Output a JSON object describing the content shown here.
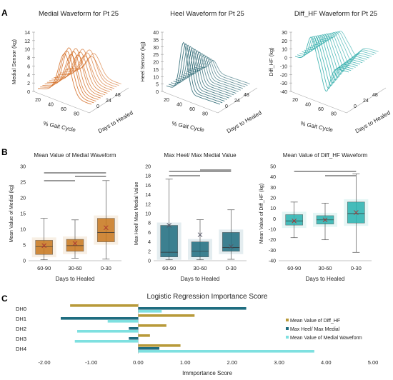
{
  "panel_letters": [
    "A",
    "B",
    "C"
  ],
  "section_a": {
    "plots": [
      {
        "title": "Medial Waveform for Pt 25",
        "zlabel": "Medial Sensor (kg)",
        "ticks": [
          "0",
          "2",
          "4",
          "6",
          "8",
          "10",
          "12",
          "14"
        ],
        "xlabel": "% Gait Cycle",
        "ylabel": "Days to Healed",
        "xticks": [
          "20",
          "40",
          "60",
          "80"
        ],
        "yticks": [
          "0",
          "24",
          "48"
        ],
        "color": "#d2691e"
      },
      {
        "title": "Heel Waveform for Pt 25",
        "zlabel": "Heel Sensor (kg)",
        "ticks": [
          "0",
          "5",
          "10",
          "15",
          "20",
          "25",
          "30",
          "35",
          "40"
        ],
        "xlabel": "% Gait Cycle",
        "ylabel": "Days to Healed",
        "xticks": [
          "20",
          "40",
          "60",
          "80"
        ],
        "yticks": [
          "0",
          "24",
          "48"
        ],
        "color": "#1f5f6b"
      },
      {
        "title": "Diff_HF Waveform for Pt 25",
        "zlabel": "Diff_HF (kg)",
        "ticks": [
          "-40",
          "-30",
          "-20",
          "-10",
          "0",
          "10",
          "20",
          "30"
        ],
        "xlabel": "% Gait Cycle",
        "ylabel": "Days to Healed",
        "xticks": [
          "20",
          "40",
          "60",
          "80"
        ],
        "yticks": [
          "0",
          "24",
          "48"
        ],
        "color": "#2aaaa8"
      }
    ]
  },
  "chart_data": [
    {
      "type": "box",
      "title": "Mean Value of Medial Waveform",
      "xlabel": "Days to Healed",
      "ylabel": "Mean Value of Medial (kg)",
      "ylim": [
        0,
        30
      ],
      "yticks": [
        "0",
        "5",
        "10",
        "15",
        "20",
        "25",
        "30"
      ],
      "categories": [
        "60-90",
        "30-60",
        "0-30"
      ],
      "boxes": [
        {
          "min": 0.3,
          "q1": 2.0,
          "median": 4.5,
          "q3": 6.5,
          "max": 13.5,
          "mean": 4.8
        },
        {
          "min": 0.8,
          "q1": 3.0,
          "median": 4.8,
          "q3": 6.8,
          "max": 13.0,
          "mean": 5.5
        },
        {
          "min": 0.5,
          "q1": 6.0,
          "median": 9.0,
          "q3": 13.5,
          "max": 25.5,
          "mean": 10.5
        }
      ],
      "color": "#c8781e"
    },
    {
      "type": "box",
      "title": "Max Heel/ Max Medial Value",
      "xlabel": "Days to Healed",
      "ylabel": "Max Heel/ Max Medial Value",
      "ylim": [
        0,
        20
      ],
      "yticks": [
        "0",
        "2",
        "4",
        "6",
        "8",
        "10",
        "12",
        "14",
        "16",
        "18",
        "20"
      ],
      "categories": [
        "60-90",
        "30-60",
        "0-30"
      ],
      "boxes": [
        {
          "min": 0.2,
          "q1": 0.8,
          "median": 1.8,
          "q3": 7.5,
          "max": 17.3,
          "mean": 7.5
        },
        {
          "min": 0.2,
          "q1": 0.8,
          "median": 2.0,
          "q3": 4.0,
          "max": 8.7,
          "mean": 5.5
        },
        {
          "min": 0.3,
          "q1": 2.0,
          "median": 2.8,
          "q3": 6.0,
          "max": 10.8,
          "mean": 3.0
        }
      ],
      "color": "#1f6d80"
    },
    {
      "type": "box",
      "title": "Mean Value of Diff_HF Waveform",
      "xlabel": "Days to Healed",
      "ylabel": "Mean Value of Diff_HF (kg)",
      "ylim": [
        -40,
        50
      ],
      "yticks": [
        "-40",
        "-30",
        "-20",
        "-10",
        "0",
        "10",
        "20",
        "30",
        "40",
        "50"
      ],
      "categories": [
        "60-90",
        "30-60",
        "0-30"
      ],
      "boxes": [
        {
          "min": -18,
          "q1": -6,
          "median": -2,
          "q3": 4,
          "max": 16,
          "mean": -2
        },
        {
          "min": -20,
          "q1": -5,
          "median": -1,
          "q3": 3,
          "max": 15,
          "mean": -1
        },
        {
          "min": -32,
          "q1": -4,
          "median": 5,
          "q3": 16,
          "max": 43,
          "mean": 6
        }
      ],
      "color": "#2ab3b0"
    },
    {
      "type": "bar",
      "orientation": "horizontal",
      "title": "Logistic Regression Importance Score",
      "xlabel": "Immportance Score",
      "xlim": [
        -2.0,
        5.0
      ],
      "xticks": [
        "-2.00",
        "-1.00",
        "0.00",
        "1.00",
        "2.00",
        "3.00",
        "4.00",
        "5.00"
      ],
      "categories": [
        "DH0",
        "DH1",
        "DH2",
        "DH3",
        "DH4"
      ],
      "series": [
        {
          "name": "Mean Value of Diff_HF",
          "values": [
            -1.45,
            1.2,
            0.6,
            0.25,
            0.9
          ],
          "color": "#b89a3a"
        },
        {
          "name": "Max Heel/ Max Medial",
          "values": [
            2.3,
            -1.65,
            -0.2,
            -0.2,
            0.45
          ],
          "color": "#1f6d80"
        },
        {
          "name": "Mean Value of Medial Waveform",
          "values": [
            0.5,
            -0.65,
            -1.3,
            -1.35,
            3.75
          ],
          "color": "#7ee0e0"
        }
      ]
    }
  ]
}
